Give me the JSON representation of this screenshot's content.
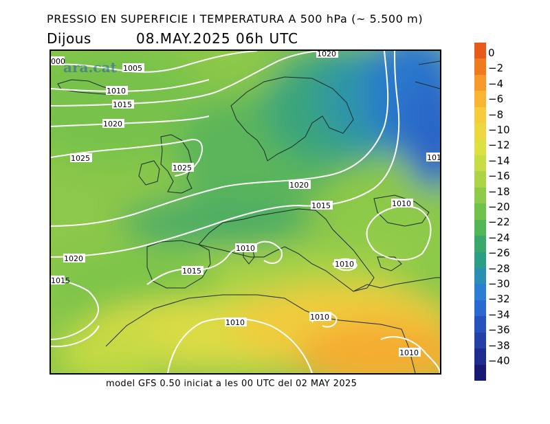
{
  "header": {
    "title": "PRESSIO EN SUPERFICIE I TEMPERATURA A 500 hPa (~ 5.500 m)",
    "day": "Dijous",
    "datetime": "08.MAY.2025 06h UTC"
  },
  "footer": {
    "text": "model GFS 0.50 iniciat a les 00 UTC del 02 MAY 2025"
  },
  "map": {
    "watermark": "ara.cat",
    "isobar_labels": [
      "000",
      "1005",
      "1010",
      "1015",
      "1020",
      "1025",
      "1025",
      "1020",
      "1015",
      "1020",
      "1015",
      "1010",
      "1010",
      "1015",
      "1010",
      "1010",
      "1010",
      "1010",
      "1020",
      "101"
    ]
  },
  "colorbar": {
    "labels": [
      "0",
      "−2",
      "−4",
      "−6",
      "−8",
      "−10",
      "−12",
      "−14",
      "−16",
      "−18",
      "−20",
      "−22",
      "−24",
      "−26",
      "−28",
      "−30",
      "−32",
      "−34",
      "−36",
      "−38",
      "−40"
    ],
    "colors": [
      "#e85a1a",
      "#f07a1e",
      "#f59a28",
      "#f8b534",
      "#f6cb3c",
      "#ecd742",
      "#dde042",
      "#c8dc44",
      "#acd446",
      "#8fcb48",
      "#70c24a",
      "#52b656",
      "#3aa86a",
      "#2b9f86",
      "#2a8fb0",
      "#2a7fd2",
      "#2a69d2",
      "#2652bd",
      "#2340a5",
      "#1e2c8d",
      "#181973"
    ]
  }
}
